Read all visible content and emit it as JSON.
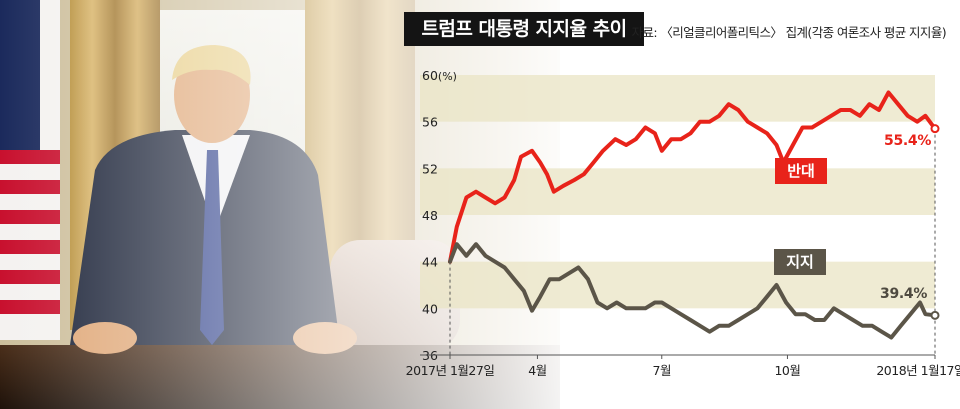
{
  "title": "트럼프 대통령 지지율 추이",
  "source": "자료: 〈리얼클리어폴리틱스〉 집계(각종 여론조사 평균 지지율)",
  "colors": {
    "oppose": "#e8231a",
    "approve": "#5b5548",
    "band": "#eae4c4",
    "title_bg": "#141414"
  },
  "chart_data": {
    "type": "line",
    "unit_label": "(%)",
    "ylim": [
      36,
      60
    ],
    "y_ticks": [
      {
        "value": 60,
        "label": "60"
      },
      {
        "value": 56,
        "label": "56"
      },
      {
        "value": 52,
        "label": "52"
      },
      {
        "value": 48,
        "label": "48"
      },
      {
        "value": 44,
        "label": "44"
      },
      {
        "value": 40,
        "label": "40"
      },
      {
        "value": 36,
        "label": "36"
      }
    ],
    "x_range": [
      "2017-01-27",
      "2018-01-17"
    ],
    "x_ticks": [
      {
        "date": "2017-01-27",
        "label": "2017년 1월27일"
      },
      {
        "date": "2017-04-01",
        "label": "4월"
      },
      {
        "date": "2017-07-01",
        "label": "7월"
      },
      {
        "date": "2017-10-01",
        "label": "10월"
      },
      {
        "date": "2018-01-17",
        "label": "2018년 1월17일"
      }
    ],
    "series": [
      {
        "name": "반대",
        "end_label": "55.4%",
        "points": [
          [
            "2017-01-27",
            44.0
          ],
          [
            "2017-02-01",
            47.0
          ],
          [
            "2017-02-08",
            49.5
          ],
          [
            "2017-02-15",
            50.0
          ],
          [
            "2017-02-22",
            49.5
          ],
          [
            "2017-03-01",
            49.0
          ],
          [
            "2017-03-08",
            49.5
          ],
          [
            "2017-03-15",
            51.0
          ],
          [
            "2017-03-20",
            53.0
          ],
          [
            "2017-03-28",
            53.5
          ],
          [
            "2017-04-03",
            52.5
          ],
          [
            "2017-04-08",
            51.5
          ],
          [
            "2017-04-13",
            50.0
          ],
          [
            "2017-04-20",
            50.5
          ],
          [
            "2017-04-28",
            51.0
          ],
          [
            "2017-05-05",
            51.5
          ],
          [
            "2017-05-12",
            52.5
          ],
          [
            "2017-05-19",
            53.5
          ],
          [
            "2017-05-28",
            54.5
          ],
          [
            "2017-06-05",
            54.0
          ],
          [
            "2017-06-12",
            54.5
          ],
          [
            "2017-06-19",
            55.5
          ],
          [
            "2017-06-26",
            55.0
          ],
          [
            "2017-07-01",
            53.5
          ],
          [
            "2017-07-08",
            54.5
          ],
          [
            "2017-07-15",
            54.5
          ],
          [
            "2017-07-22",
            55.0
          ],
          [
            "2017-07-29",
            56.0
          ],
          [
            "2017-08-05",
            56.0
          ],
          [
            "2017-08-12",
            56.5
          ],
          [
            "2017-08-19",
            57.5
          ],
          [
            "2017-08-26",
            57.0
          ],
          [
            "2017-09-02",
            56.0
          ],
          [
            "2017-09-09",
            55.5
          ],
          [
            "2017-09-16",
            55.0
          ],
          [
            "2017-09-23",
            54.0
          ],
          [
            "2017-09-28",
            52.5
          ],
          [
            "2017-10-05",
            54.0
          ],
          [
            "2017-10-12",
            55.5
          ],
          [
            "2017-10-19",
            55.5
          ],
          [
            "2017-10-26",
            56.0
          ],
          [
            "2017-11-02",
            56.5
          ],
          [
            "2017-11-09",
            57.0
          ],
          [
            "2017-11-16",
            57.0
          ],
          [
            "2017-11-23",
            56.5
          ],
          [
            "2017-11-30",
            57.5
          ],
          [
            "2017-12-07",
            57.0
          ],
          [
            "2017-12-14",
            58.5
          ],
          [
            "2017-12-21",
            57.5
          ],
          [
            "2017-12-28",
            56.5
          ],
          [
            "2018-01-04",
            56.0
          ],
          [
            "2018-01-10",
            56.5
          ],
          [
            "2018-01-17",
            55.4
          ]
        ]
      },
      {
        "name": "지지",
        "end_label": "39.4%",
        "points": [
          [
            "2017-01-27",
            44.0
          ],
          [
            "2017-02-01",
            45.5
          ],
          [
            "2017-02-08",
            44.5
          ],
          [
            "2017-02-15",
            45.5
          ],
          [
            "2017-02-22",
            44.5
          ],
          [
            "2017-03-01",
            44.0
          ],
          [
            "2017-03-08",
            43.5
          ],
          [
            "2017-03-15",
            42.5
          ],
          [
            "2017-03-22",
            41.5
          ],
          [
            "2017-03-28",
            39.8
          ],
          [
            "2017-04-03",
            41.0
          ],
          [
            "2017-04-10",
            42.5
          ],
          [
            "2017-04-17",
            42.5
          ],
          [
            "2017-04-24",
            43.0
          ],
          [
            "2017-05-01",
            43.5
          ],
          [
            "2017-05-08",
            42.5
          ],
          [
            "2017-05-15",
            40.5
          ],
          [
            "2017-05-22",
            40.0
          ],
          [
            "2017-05-29",
            40.5
          ],
          [
            "2017-06-05",
            40.0
          ],
          [
            "2017-06-12",
            40.0
          ],
          [
            "2017-06-19",
            40.0
          ],
          [
            "2017-06-26",
            40.5
          ],
          [
            "2017-07-01",
            40.5
          ],
          [
            "2017-07-08",
            40.0
          ],
          [
            "2017-07-15",
            39.5
          ],
          [
            "2017-07-22",
            39.0
          ],
          [
            "2017-07-29",
            38.5
          ],
          [
            "2017-08-05",
            38.0
          ],
          [
            "2017-08-12",
            38.5
          ],
          [
            "2017-08-19",
            38.5
          ],
          [
            "2017-08-26",
            39.0
          ],
          [
            "2017-09-02",
            39.5
          ],
          [
            "2017-09-09",
            40.0
          ],
          [
            "2017-09-16",
            41.0
          ],
          [
            "2017-09-23",
            42.0
          ],
          [
            "2017-09-30",
            40.5
          ],
          [
            "2017-10-07",
            39.5
          ],
          [
            "2017-10-14",
            39.5
          ],
          [
            "2017-10-21",
            39.0
          ],
          [
            "2017-10-28",
            39.0
          ],
          [
            "2017-11-04",
            40.0
          ],
          [
            "2017-11-11",
            39.5
          ],
          [
            "2017-11-18",
            39.0
          ],
          [
            "2017-11-25",
            38.5
          ],
          [
            "2017-12-02",
            38.5
          ],
          [
            "2017-12-09",
            38.0
          ],
          [
            "2017-12-16",
            37.5
          ],
          [
            "2017-12-23",
            38.5
          ],
          [
            "2017-12-30",
            39.5
          ],
          [
            "2018-01-06",
            40.5
          ],
          [
            "2018-01-10",
            39.5
          ],
          [
            "2018-01-17",
            39.4
          ]
        ]
      }
    ]
  }
}
